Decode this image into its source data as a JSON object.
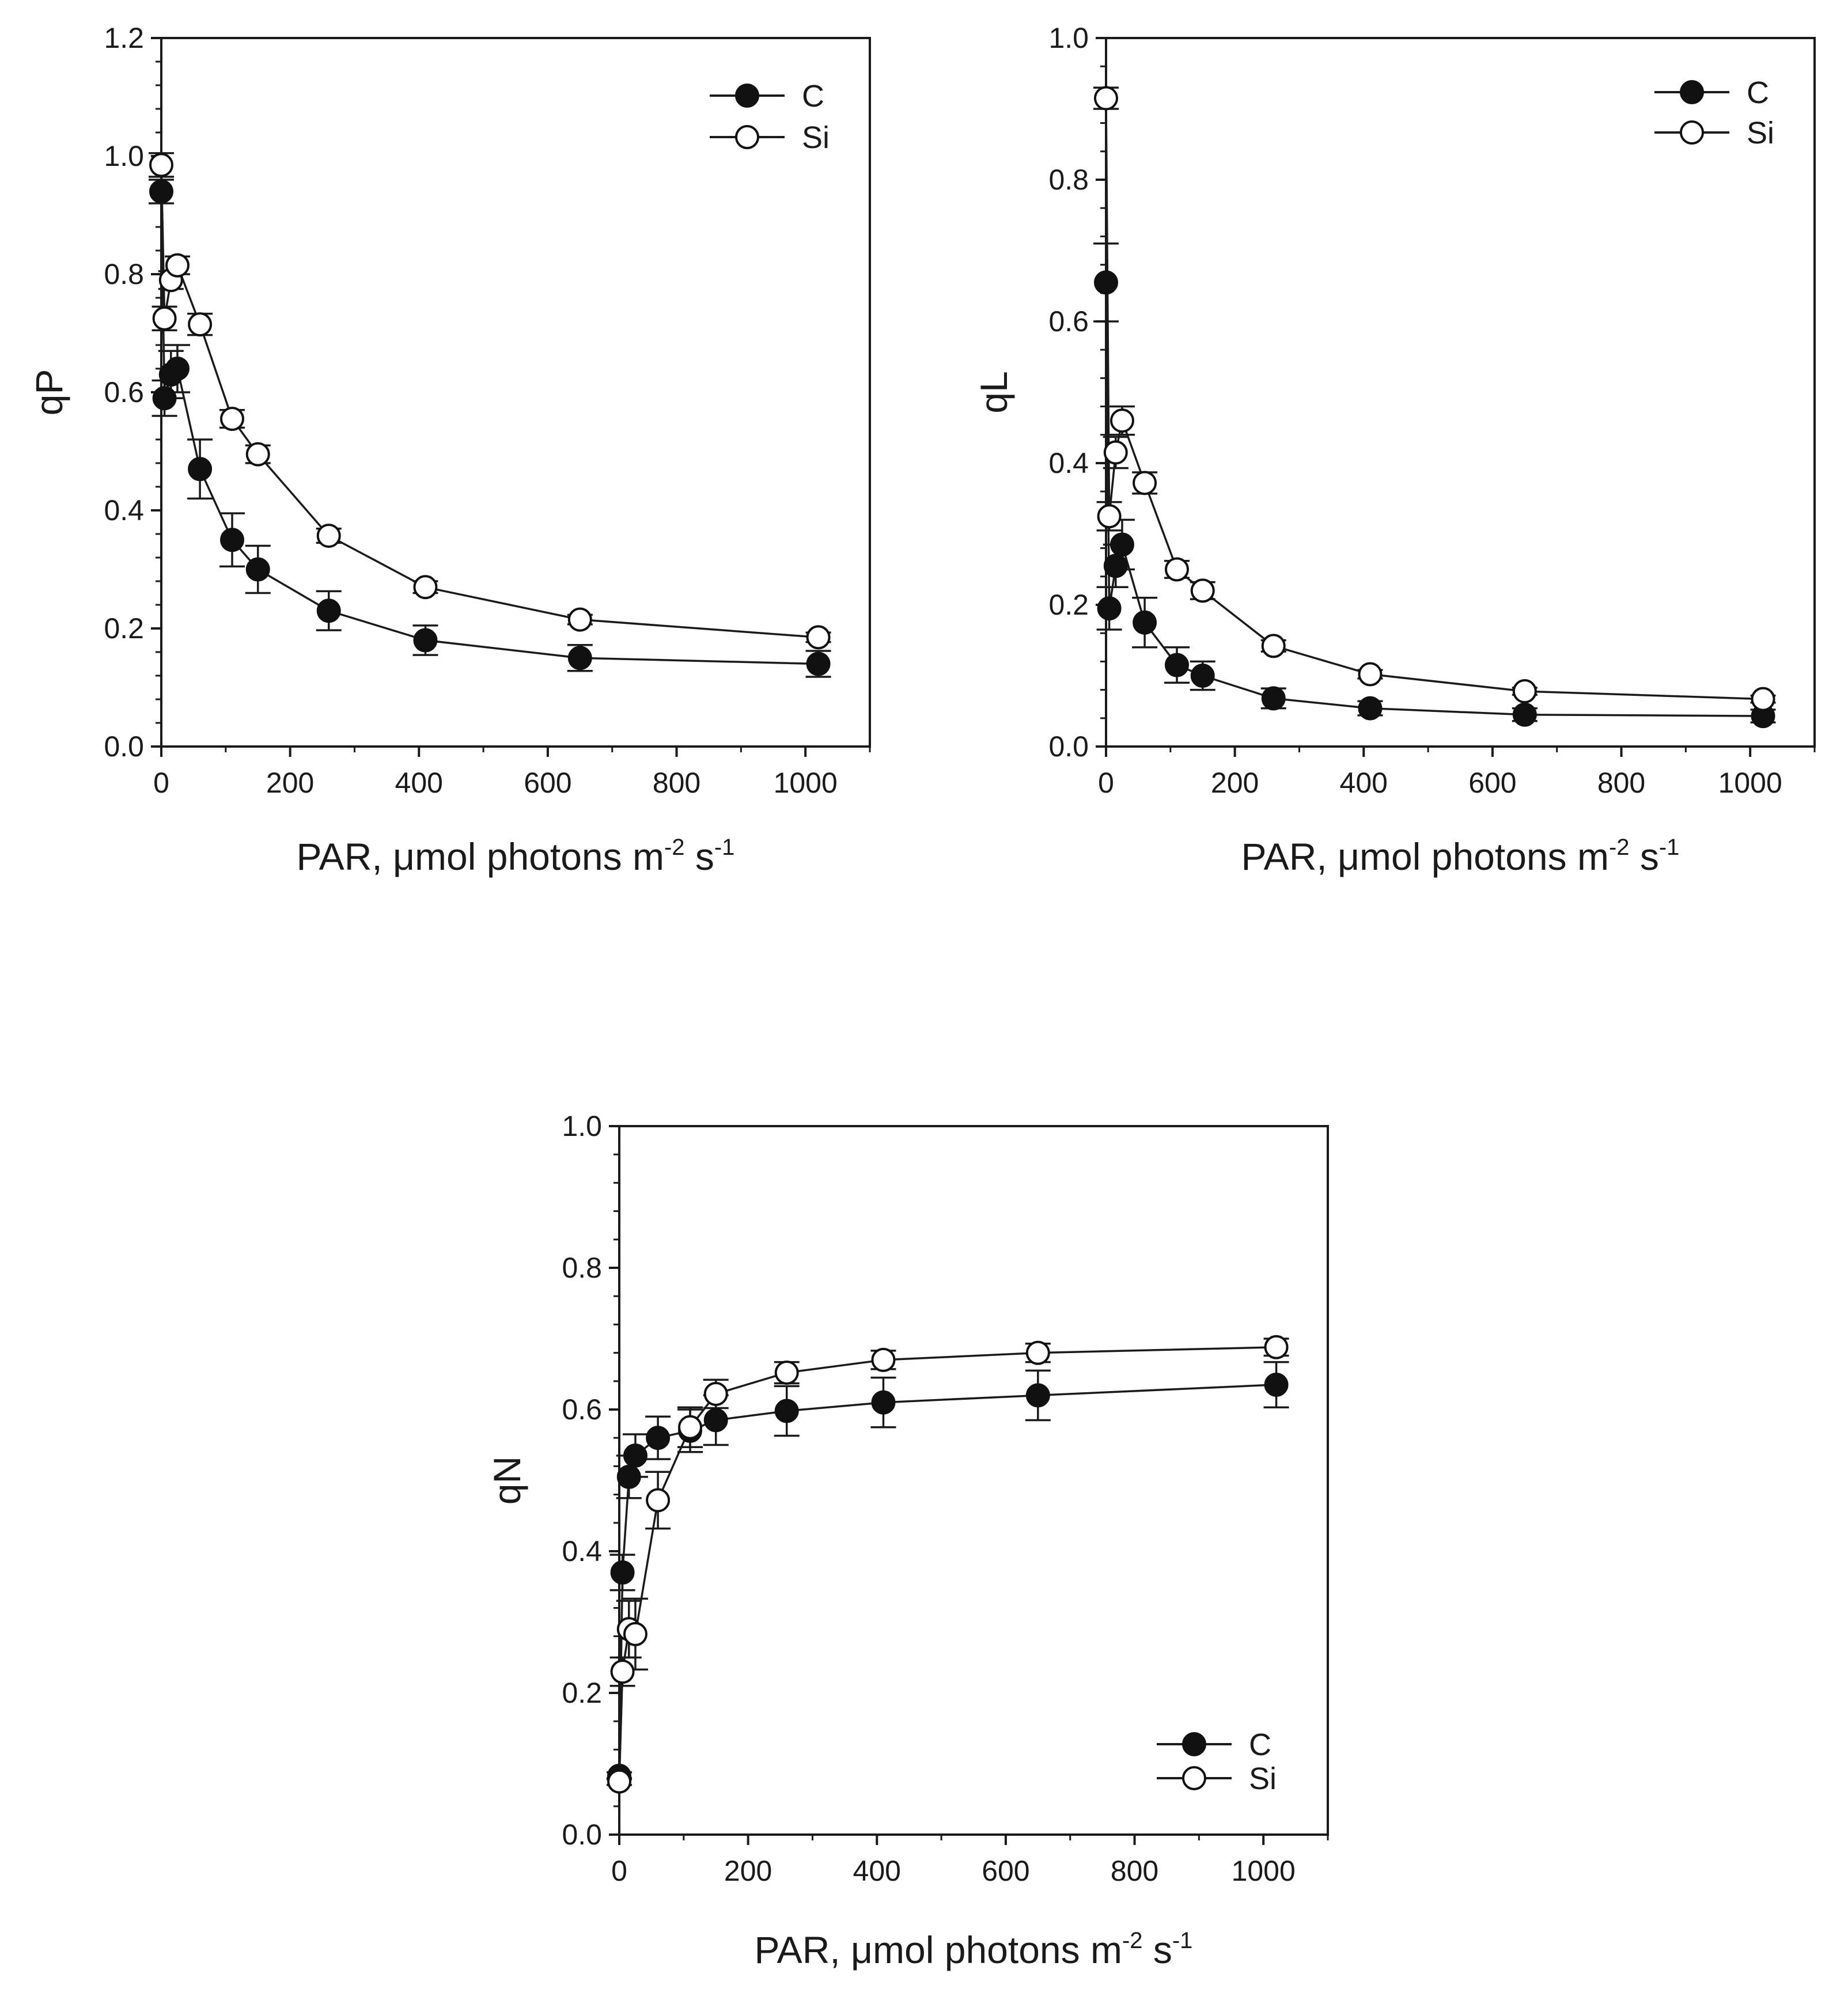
{
  "chart_data": [
    {
      "id": "qP",
      "type": "line",
      "ylabel": "qP",
      "xlabel": {
        "base": "PAR, μmol photons m",
        "sup1": "-2",
        "mid": " s",
        "sup2": "-1"
      },
      "xlim": [
        0,
        1100
      ],
      "ylim": [
        0,
        1.2
      ],
      "xticks": [
        "0",
        "200",
        "400",
        "600",
        "800",
        "1000"
      ],
      "xtick_values": [
        0,
        200,
        400,
        600,
        800,
        1000
      ],
      "yticks": [
        "0.0",
        "0.2",
        "0.4",
        "0.6",
        "0.8",
        "1.0",
        "1.2"
      ],
      "ytick_values": [
        0,
        0.2,
        0.4,
        0.6,
        0.8,
        1.0,
        1.2
      ],
      "legend_position": "top-right",
      "series": [
        {
          "name": "C",
          "marker": "filled",
          "x": [
            0,
            5,
            15,
            25,
            60,
            110,
            150,
            260,
            410,
            650,
            1020
          ],
          "y": [
            0.94,
            0.59,
            0.63,
            0.64,
            0.47,
            0.35,
            0.3,
            0.23,
            0.18,
            0.15,
            0.14
          ],
          "err": [
            0.02,
            0.03,
            0.04,
            0.04,
            0.05,
            0.045,
            0.04,
            0.033,
            0.025,
            0.022,
            0.022
          ]
        },
        {
          "name": "Si",
          "marker": "open",
          "x": [
            0,
            5,
            15,
            25,
            60,
            110,
            150,
            260,
            410,
            650,
            1020
          ],
          "y": [
            0.985,
            0.725,
            0.79,
            0.815,
            0.715,
            0.555,
            0.495,
            0.357,
            0.27,
            0.215,
            0.185
          ],
          "err": [
            0.02,
            0.02,
            0.015,
            0.015,
            0.018,
            0.015,
            0.015,
            0.012,
            0.01,
            0.008,
            0.008
          ]
        }
      ]
    },
    {
      "id": "qL",
      "type": "line",
      "ylabel": "qL",
      "xlabel": {
        "base": "PAR, μmol photons m",
        "sup1": "-2",
        "mid": " s",
        "sup2": "-1"
      },
      "xlim": [
        0,
        1100
      ],
      "ylim": [
        0,
        1.0
      ],
      "xticks": [
        "0",
        "200",
        "400",
        "600",
        "800",
        "1000"
      ],
      "xtick_values": [
        0,
        200,
        400,
        600,
        800,
        1000
      ],
      "yticks": [
        "0.0",
        "0.2",
        "0.4",
        "0.6",
        "0.8",
        "1.0"
      ],
      "ytick_values": [
        0,
        0.2,
        0.4,
        0.6,
        0.8,
        1.0
      ],
      "legend_position": "top-right",
      "series": [
        {
          "name": "C",
          "marker": "filled",
          "x": [
            0,
            5,
            15,
            25,
            60,
            110,
            150,
            260,
            410,
            650,
            1020
          ],
          "y": [
            0.655,
            0.195,
            0.255,
            0.285,
            0.175,
            0.115,
            0.1,
            0.068,
            0.054,
            0.045,
            0.043
          ],
          "err": [
            0.055,
            0.03,
            0.03,
            0.035,
            0.035,
            0.025,
            0.02,
            0.014,
            0.01,
            0.009,
            0.009
          ]
        },
        {
          "name": "Si",
          "marker": "open",
          "x": [
            0,
            5,
            15,
            25,
            60,
            110,
            150,
            260,
            410,
            650,
            1020
          ],
          "y": [
            0.915,
            0.325,
            0.415,
            0.46,
            0.372,
            0.25,
            0.22,
            0.142,
            0.102,
            0.078,
            0.067
          ],
          "err": [
            0.015,
            0.02,
            0.022,
            0.02,
            0.015,
            0.012,
            0.012,
            0.008,
            0.006,
            0.005,
            0.005
          ]
        }
      ]
    },
    {
      "id": "qN",
      "type": "line",
      "ylabel": "qN",
      "xlabel": {
        "base": "PAR, μmol photons m",
        "sup1": "-2",
        "mid": " s",
        "sup2": "-1"
      },
      "xlim": [
        0,
        1100
      ],
      "ylim": [
        0,
        1.0
      ],
      "xticks": [
        "0",
        "200",
        "400",
        "600",
        "800",
        "1000"
      ],
      "xtick_values": [
        0,
        200,
        400,
        600,
        800,
        1000
      ],
      "yticks": [
        "0.0",
        "0.2",
        "0.4",
        "0.6",
        "0.8",
        "1.0"
      ],
      "ytick_values": [
        0,
        0.2,
        0.4,
        0.6,
        0.8,
        1.0
      ],
      "legend_position": "bottom-right",
      "series": [
        {
          "name": "C",
          "marker": "filled",
          "x": [
            0,
            5,
            15,
            25,
            60,
            110,
            150,
            260,
            410,
            650,
            1020
          ],
          "y": [
            0.083,
            0.37,
            0.505,
            0.535,
            0.56,
            0.57,
            0.585,
            0.598,
            0.61,
            0.62,
            0.635
          ],
          "err": [
            0.005,
            0.025,
            0.03,
            0.03,
            0.03,
            0.03,
            0.035,
            0.035,
            0.035,
            0.035,
            0.032
          ]
        },
        {
          "name": "Si",
          "marker": "open",
          "x": [
            0,
            5,
            15,
            25,
            60,
            110,
            150,
            260,
            410,
            650,
            1020
          ],
          "y": [
            0.075,
            0.23,
            0.29,
            0.283,
            0.472,
            0.575,
            0.622,
            0.652,
            0.67,
            0.68,
            0.688
          ],
          "err": [
            0.005,
            0.02,
            0.04,
            0.05,
            0.04,
            0.028,
            0.02,
            0.015,
            0.013,
            0.013,
            0.012
          ]
        }
      ]
    }
  ]
}
